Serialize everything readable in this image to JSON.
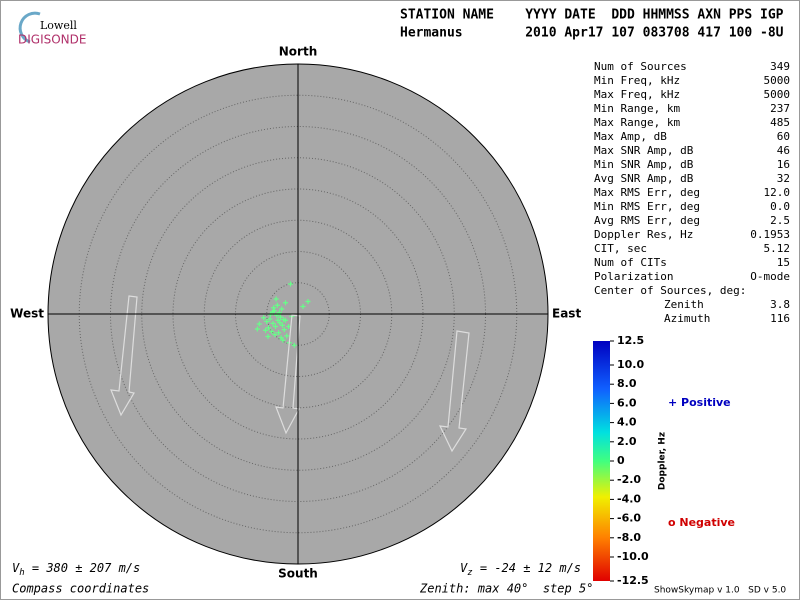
{
  "logo": {
    "small": "Lowell",
    "big": "DIGISONDE"
  },
  "header": {
    "line1": "STATION NAME    YYYY DATE  DDD HHMMSS AXN PPS IGP",
    "line2": "Hermanus        2010 Apr17 107 083708 417 100 -8U"
  },
  "stats": [
    [
      "Num of Sources",
      "349"
    ],
    [
      "Min Freq, kHz",
      "5000"
    ],
    [
      "Max Freq, kHz",
      "5000"
    ],
    [
      "Min Range, km",
      "237"
    ],
    [
      "Max Range, km",
      "485"
    ],
    [
      "Max Amp, dB",
      "60"
    ],
    [
      "Max SNR Amp, dB",
      "46"
    ],
    [
      "Min SNR Amp, dB",
      "16"
    ],
    [
      "Avg SNR Amp, dB",
      "32"
    ],
    [
      "Max RMS Err, deg",
      "12.0"
    ],
    [
      "Min RMS Err, deg",
      "0.0"
    ],
    [
      "Avg RMS Err, deg",
      "2.5"
    ],
    [
      "Doppler Res, Hz",
      "0.1953"
    ],
    [
      "CIT, sec",
      "5.12"
    ],
    [
      "Num of CITs",
      "15"
    ],
    [
      "Polarization",
      "O-mode"
    ]
  ],
  "center": {
    "title": "Center of Sources, deg:",
    "rows": [
      [
        "Zenith",
        "3.8"
      ],
      [
        "Azimuth",
        "116"
      ]
    ]
  },
  "footer": {
    "vh": [
      "V",
      "h",
      " = 380 ± 207 m/s"
    ],
    "vz": [
      "V",
      "z",
      " = -24 ± 12 m/s"
    ],
    "coords": "Compass coordinates",
    "zenith": "Zenith: max 40°  step 5°",
    "version": "ShowSkymap v 1.0   SD v 5.0"
  },
  "chart_data": {
    "type": "polar-scatter",
    "compass": {
      "north": "North",
      "south": "South",
      "east": "East",
      "west": "West"
    },
    "xlim": [
      -40,
      40
    ],
    "ylim": [
      -40,
      40
    ],
    "rings": [
      5,
      10,
      15,
      20,
      25,
      30,
      35,
      40
    ],
    "color": "#66ff88",
    "x": [
      -3.2,
      -4.0,
      -2.8,
      -3.6,
      -4.5,
      -2.5,
      -3.0,
      -5.0,
      -3.8,
      -2.2,
      -4.2,
      -3.4,
      -2.0,
      -5.5,
      -3.1,
      -4.7,
      -2.6,
      -3.9,
      -1.8,
      -6.2,
      -4.4,
      -3.3,
      -2.9,
      -5.2,
      -1.5,
      -3.7,
      -2.4,
      -4.1,
      -2.0,
      -1.2,
      -6.5,
      0.8,
      1.6,
      -1.0,
      -1.4,
      -3.5,
      -2.7,
      -4.8,
      -0.6,
      -2.3
    ],
    "y": [
      -1.0,
      -1.5,
      -0.5,
      -2.0,
      -0.8,
      -1.8,
      0.2,
      -1.2,
      0.5,
      -2.5,
      -2.8,
      -0.2,
      -1.0,
      -0.6,
      -3.0,
      -2.2,
      0.8,
      1.0,
      -3.5,
      -1.6,
      -0.1,
      1.4,
      -1.4,
      -2.6,
      -2.0,
      -3.3,
      -4.2,
      0.3,
      1.8,
      4.8,
      -2.4,
      1.2,
      2.0,
      -0.4,
      -4.6,
      2.4,
      -3.8,
      -3.6,
      -5.0,
      -0.9
    ],
    "colorbar": {
      "label": "Doppler, Hz",
      "lim": [
        -12.5,
        12.5
      ],
      "ticks": [
        12.5,
        {
          "value": 10,
          "label": "10.0"
        },
        {
          "value": 8,
          "label": "8.0"
        },
        {
          "value": 6,
          "label": "6.0"
        },
        {
          "value": 4,
          "label": "4.0"
        },
        {
          "value": 2,
          "label": "2.0"
        },
        0,
        {
          "value": -2,
          "label": "-2.0"
        },
        {
          "value": -4,
          "label": "-4.0"
        },
        {
          "value": -6,
          "label": "-6.0"
        },
        {
          "value": -8,
          "label": "-8.0"
        },
        {
          "value": -10,
          "label": "-10.0"
        },
        -12.5
      ],
      "positive": "+ Positive",
      "negative": "o Negative"
    }
  }
}
